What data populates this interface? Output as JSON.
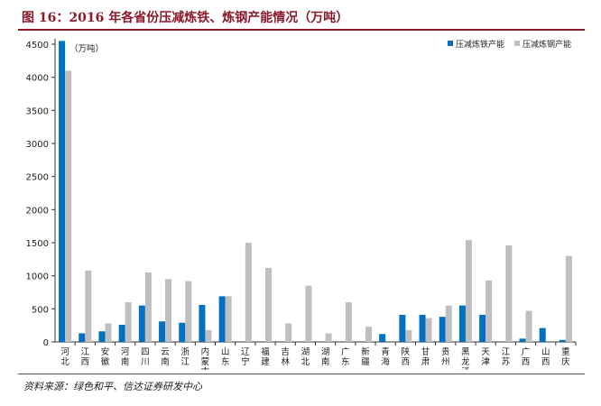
{
  "title": "图 16：2016 年各省份压减炼铁、炼钢产能情况（万吨）",
  "source": "资料来源：绿色和平、信达证券研发中心",
  "chart_data": {
    "type": "bar",
    "unit_label": "（万吨）",
    "categories": [
      "河北",
      "江西",
      "安徽",
      "河南",
      "四川",
      "云南",
      "浙江",
      "内蒙古",
      "山东",
      "辽宁",
      "福建",
      "吉林",
      "湖北",
      "湖南",
      "广东",
      "新疆",
      "青海",
      "陕西",
      "甘肃",
      "贵州",
      "黑龙江",
      "天津",
      "江苏",
      "广西",
      "山西",
      "重庆"
    ],
    "series": [
      {
        "name": "压减炼铁产能",
        "color": "#0070c0",
        "values": [
          4550,
          130,
          160,
          260,
          550,
          310,
          290,
          560,
          690,
          0,
          0,
          0,
          0,
          0,
          0,
          0,
          120,
          410,
          410,
          380,
          550,
          410,
          0,
          50,
          210,
          30
        ]
      },
      {
        "name": "压减炼钢产能",
        "color": "#bfbfbf",
        "values": [
          4100,
          1080,
          280,
          600,
          1050,
          950,
          920,
          180,
          690,
          1500,
          1120,
          280,
          850,
          130,
          600,
          230,
          0,
          180,
          360,
          550,
          1540,
          930,
          1460,
          470,
          0,
          1300
        ]
      }
    ],
    "ylim": [
      0,
      4500
    ],
    "yticks": [
      "0",
      "500",
      "1000",
      "1500",
      "2000",
      "2500",
      "3000",
      "3500",
      "4000",
      "4500"
    ],
    "grid": false,
    "legend_position": "top-right"
  }
}
